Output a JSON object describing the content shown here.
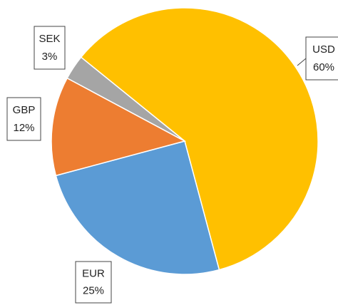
{
  "chart_data": {
    "type": "pie",
    "categories": [
      "USD",
      "EUR",
      "GBP",
      "SEK"
    ],
    "values": [
      60,
      25,
      12,
      3
    ],
    "value_labels": [
      "60%",
      "25%",
      "12%",
      "3%"
    ],
    "colors": [
      "#FFC000",
      "#5B9BD5",
      "#ED7D31",
      "#A5A5A5"
    ]
  }
}
